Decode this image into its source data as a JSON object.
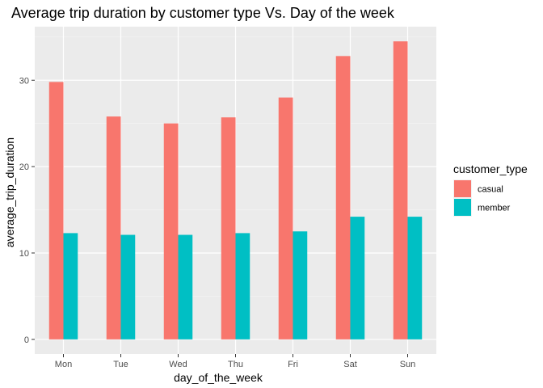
{
  "chart_data": {
    "type": "bar",
    "title": "Average trip duration by customer type Vs. Day of the week",
    "xlabel": "day_of_the_week",
    "ylabel": "average_trip_duration",
    "categories": [
      "Mon",
      "Tue",
      "Wed",
      "Thu",
      "Fri",
      "Sat",
      "Sun"
    ],
    "series": [
      {
        "name": "casual",
        "color": "#F8766D",
        "values": [
          29.8,
          25.8,
          25.0,
          25.7,
          28.0,
          32.8,
          34.5
        ]
      },
      {
        "name": "member",
        "color": "#00BFC4",
        "values": [
          12.3,
          12.1,
          12.1,
          12.3,
          12.5,
          14.2,
          14.2
        ]
      }
    ],
    "ylim": [
      -1.7,
      36.2
    ],
    "yticks": [
      0,
      10,
      20,
      30
    ],
    "grid": true,
    "legend": {
      "title": "customer_type",
      "position": "right"
    }
  }
}
